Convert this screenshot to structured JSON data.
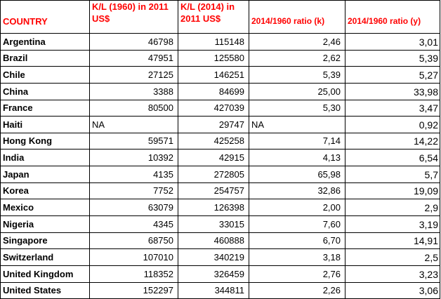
{
  "headers": {
    "country": "COUNTRY",
    "kl_1960": "K/L (1960) in 2011 US$",
    "kl_2014": "K/L (2014) in 2011 US$",
    "ratio_k": "2014/1960 ratio (k)",
    "ratio_y": "2014/1960 ratio (y)"
  },
  "rows": [
    {
      "country": "Argentina",
      "kl_1960": "46798",
      "kl_2014": "115148",
      "ratio_k": "2,46",
      "ratio_y": "3,01"
    },
    {
      "country": "Brazil",
      "kl_1960": "47951",
      "kl_2014": "125580",
      "ratio_k": "2,62",
      "ratio_y": "5,39"
    },
    {
      "country": "Chile",
      "kl_1960": "27125",
      "kl_2014": "146251",
      "ratio_k": "5,39",
      "ratio_y": "5,27"
    },
    {
      "country": "China",
      "kl_1960": "3388",
      "kl_2014": "84699",
      "ratio_k": "25,00",
      "ratio_y": "33,98"
    },
    {
      "country": "France",
      "kl_1960": "80500",
      "kl_2014": "427039",
      "ratio_k": "5,30",
      "ratio_y": "3,47"
    },
    {
      "country": "Haiti",
      "kl_1960": "NA",
      "kl_2014": "29747",
      "ratio_k": "NA",
      "ratio_y": "0,92"
    },
    {
      "country": "Hong Kong",
      "kl_1960": "59571",
      "kl_2014": "425258",
      "ratio_k": "7,14",
      "ratio_y": "14,22"
    },
    {
      "country": "India",
      "kl_1960": "10392",
      "kl_2014": "42915",
      "ratio_k": "4,13",
      "ratio_y": "6,54"
    },
    {
      "country": "Japan",
      "kl_1960": "4135",
      "kl_2014": "272805",
      "ratio_k": "65,98",
      "ratio_y": "5,7"
    },
    {
      "country": "Korea",
      "kl_1960": "7752",
      "kl_2014": "254757",
      "ratio_k": "32,86",
      "ratio_y": "19,09"
    },
    {
      "country": "Mexico",
      "kl_1960": "63079",
      "kl_2014": "126398",
      "ratio_k": "2,00",
      "ratio_y": "2,9"
    },
    {
      "country": "Nigeria",
      "kl_1960": "4345",
      "kl_2014": "33015",
      "ratio_k": "7,60",
      "ratio_y": "3,19"
    },
    {
      "country": "Singapore",
      "kl_1960": "68750",
      "kl_2014": "460888",
      "ratio_k": "6,70",
      "ratio_y": "14,91"
    },
    {
      "country": "Switzerland",
      "kl_1960": "107010",
      "kl_2014": "340219",
      "ratio_k": "3,18",
      "ratio_y": "2,5"
    },
    {
      "country": "United Kingdom",
      "kl_1960": "118352",
      "kl_2014": "326459",
      "ratio_k": "2,76",
      "ratio_y": "3,23"
    },
    {
      "country": "United States",
      "kl_1960": "152297",
      "kl_2014": "344811",
      "ratio_k": "2,26",
      "ratio_y": "3,06"
    }
  ],
  "colors": {
    "header_text": "#ff0000",
    "body_text": "#000000",
    "grid": "#000000"
  }
}
